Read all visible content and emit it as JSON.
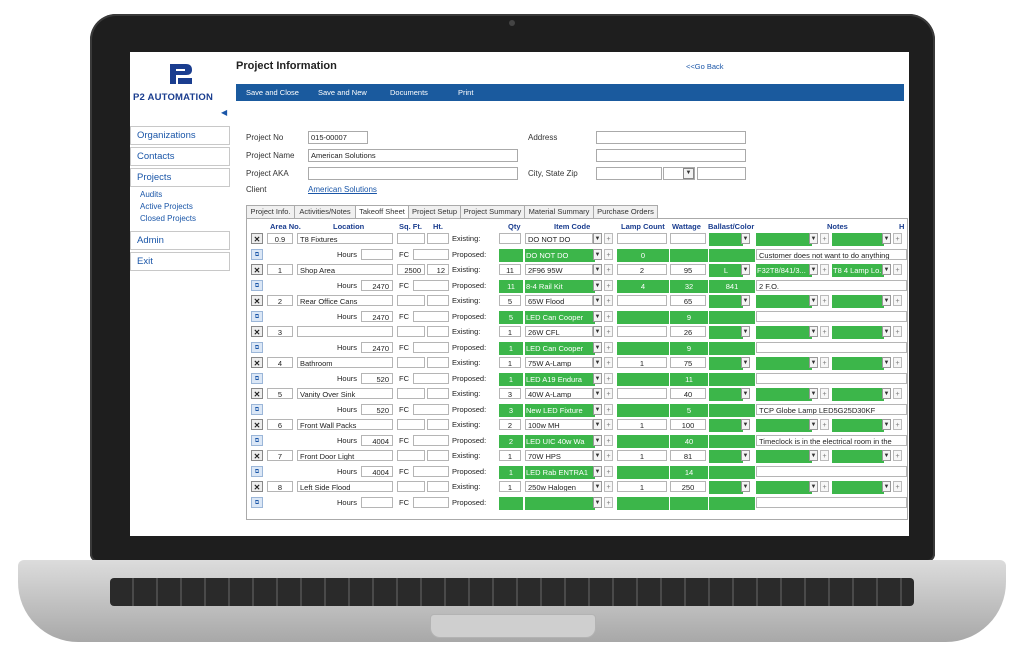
{
  "app": {
    "logo_text": "P2 AUTOMATION",
    "page_title": "Project Information",
    "go_back": "<<Go Back",
    "accent": "#1a5a9e",
    "highlight": "#3cb64a"
  },
  "sidebar": {
    "items": [
      {
        "label": "Organizations"
      },
      {
        "label": "Contacts"
      },
      {
        "label": "Projects"
      },
      {
        "label": "Admin"
      },
      {
        "label": "Exit"
      }
    ],
    "project_sub": [
      "Audits",
      "Active Projects",
      "Closed Projects"
    ]
  },
  "toolbar": {
    "save_close": "Save and Close",
    "save_new": "Save and New",
    "documents": "Documents",
    "print": "Print"
  },
  "form": {
    "project_no_label": "Project No",
    "project_no": "015-00007",
    "project_name_label": "Project Name",
    "project_name": "American Solutions",
    "project_aka_label": "Project AKA",
    "project_aka": "",
    "client_label": "Client",
    "client": "American Solutions",
    "address_label": "Address",
    "city_label": "City, State Zip"
  },
  "tabs": [
    "Project Info.",
    "Activities/Notes",
    "Takeoff Sheet",
    "Project Setup",
    "Project Summary",
    "Material Summary",
    "Purchase Orders"
  ],
  "grid": {
    "headers": {
      "area_no": "Area No.",
      "location": "Location",
      "sqft": "Sq. Ft.",
      "ht": "Ht.",
      "qty": "Qty",
      "item_code": "Item Code",
      "lamp_count": "Lamp Count",
      "wattage": "Wattage",
      "ballast": "Ballast/Color",
      "notes": "Notes",
      "h": "H"
    },
    "hours_label": "Hours",
    "fc_label": "FC",
    "existing_label": "Existing:",
    "proposed_label": "Proposed:",
    "areas": [
      {
        "no": "0.9",
        "location": "T8 Fixtures",
        "sqft": "",
        "ht": "",
        "hours": "",
        "e_qty": "",
        "e_item": "DO NOT DO",
        "e_lamp": "",
        "e_watt": "",
        "e_ballast": "",
        "e_note1": "",
        "e_note2": "",
        "p_qty": "",
        "p_item": "DO NOT DO",
        "p_lamp": "0",
        "p_watt": "",
        "p_ballast": "",
        "p_note": "Customer does not want to do anything"
      },
      {
        "no": "1",
        "location": "Shop Area",
        "sqft": "2500",
        "ht": "12",
        "hours": "2470",
        "e_qty": "11",
        "e_item": "2F96 95W",
        "e_lamp": "2",
        "e_watt": "95",
        "e_ballast": "L",
        "e_note1": "F32T8/841/3...",
        "e_note2": "T8 4 Lamp Lo...",
        "p_qty": "11",
        "p_item": "8-4 Rail Kit",
        "p_lamp": "4",
        "p_watt": "32",
        "p_ballast": "841",
        "p_note": "2 F.O."
      },
      {
        "no": "2",
        "location": "Rear Office Cans",
        "sqft": "",
        "ht": "",
        "hours": "2470",
        "e_qty": "5",
        "e_item": "65W Flood",
        "e_lamp": "",
        "e_watt": "65",
        "e_ballast": "",
        "e_note1": "",
        "e_note2": "",
        "p_qty": "5",
        "p_item": "LED Can Cooper",
        "p_lamp": "",
        "p_watt": "9",
        "p_ballast": "",
        "p_note": ""
      },
      {
        "no": "3",
        "location": "",
        "sqft": "",
        "ht": "",
        "hours": "2470",
        "e_qty": "1",
        "e_item": "26W CFL",
        "e_lamp": "",
        "e_watt": "26",
        "e_ballast": "",
        "e_note1": "",
        "e_note2": "",
        "p_qty": "1",
        "p_item": "LED Can Cooper",
        "p_lamp": "",
        "p_watt": "9",
        "p_ballast": "",
        "p_note": ""
      },
      {
        "no": "4",
        "location": "Bathroom",
        "sqft": "",
        "ht": "",
        "hours": "520",
        "e_qty": "1",
        "e_item": "75W A-Lamp",
        "e_lamp": "1",
        "e_watt": "75",
        "e_ballast": "",
        "e_note1": "",
        "e_note2": "",
        "p_qty": "1",
        "p_item": "LED A19 Endura",
        "p_lamp": "",
        "p_watt": "11",
        "p_ballast": "",
        "p_note": ""
      },
      {
        "no": "5",
        "location": "Vanity Over Sink",
        "sqft": "",
        "ht": "",
        "hours": "520",
        "e_qty": "3",
        "e_item": "40W A-Lamp",
        "e_lamp": "",
        "e_watt": "40",
        "e_ballast": "",
        "e_note1": "",
        "e_note2": "",
        "p_qty": "3",
        "p_item": "New LED Fixture",
        "p_lamp": "",
        "p_watt": "5",
        "p_ballast": "",
        "p_note": "TCP Globe Lamp LED5G25D30KF"
      },
      {
        "no": "6",
        "location": "Front Wall Packs",
        "sqft": "",
        "ht": "",
        "hours": "4004",
        "e_qty": "2",
        "e_item": "100w MH",
        "e_lamp": "1",
        "e_watt": "100",
        "e_ballast": "",
        "e_note1": "",
        "e_note2": "",
        "p_qty": "2",
        "p_item": "LED UIC 40w Wa",
        "p_lamp": "",
        "p_watt": "40",
        "p_ballast": "",
        "p_note": "Timeclock is in the electrical room in the"
      },
      {
        "no": "7",
        "location": "Front Door Light",
        "sqft": "",
        "ht": "",
        "hours": "4004",
        "e_qty": "1",
        "e_item": "70W HPS",
        "e_lamp": "1",
        "e_watt": "81",
        "e_ballast": "",
        "e_note1": "",
        "e_note2": "",
        "p_qty": "1",
        "p_item": "LED Rab ENTRA1",
        "p_lamp": "",
        "p_watt": "14",
        "p_ballast": "",
        "p_note": ""
      },
      {
        "no": "8",
        "location": "Left Side Flood",
        "sqft": "",
        "ht": "",
        "hours": "",
        "e_qty": "1",
        "e_item": "250w Halogen",
        "e_lamp": "1",
        "e_watt": "250",
        "e_ballast": "",
        "e_note1": "",
        "e_note2": "",
        "p_qty": "",
        "p_item": "",
        "p_lamp": "",
        "p_watt": "",
        "p_ballast": "",
        "p_note": ""
      }
    ]
  }
}
